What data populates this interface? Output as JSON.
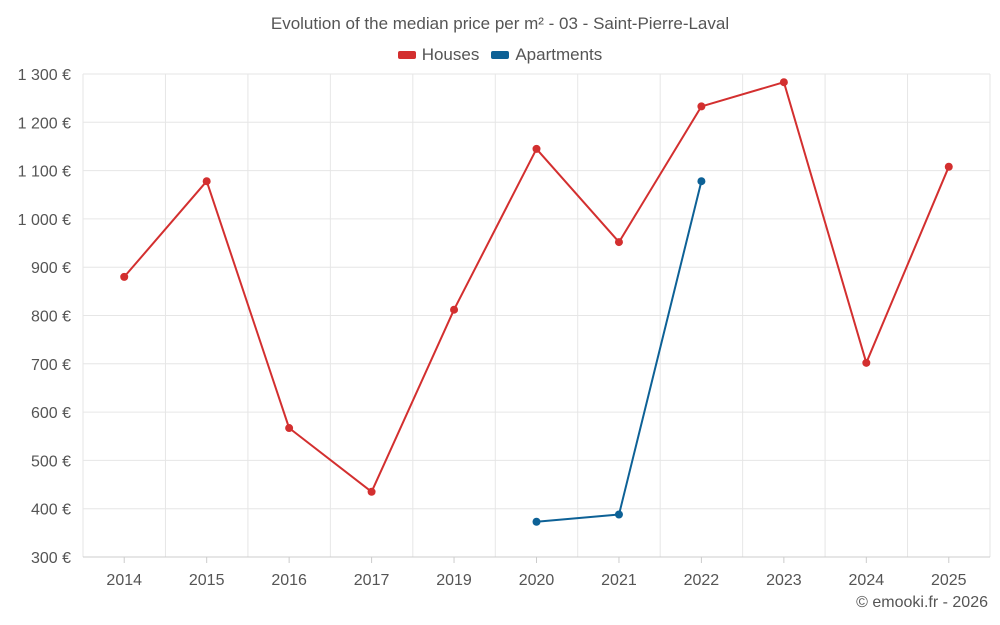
{
  "chart_data": {
    "type": "line",
    "title": "Evolution of the median price per m² - 03 - Saint-Pierre-Laval",
    "categories": [
      "2014",
      "2015",
      "2016",
      "2017",
      "2019",
      "2020",
      "2021",
      "2022",
      "2023",
      "2024",
      "2025"
    ],
    "series": [
      {
        "name": "Houses",
        "color": "#d32f2f",
        "values": [
          880,
          1078,
          567,
          435,
          812,
          1145,
          952,
          1233,
          1283,
          702,
          1108
        ]
      },
      {
        "name": "Apartments",
        "color": "#0d6196",
        "values": [
          null,
          null,
          null,
          null,
          null,
          373,
          388,
          1078,
          null,
          null,
          null
        ]
      }
    ],
    "ylim": [
      300,
      1300
    ],
    "yticks": [
      300,
      400,
      500,
      600,
      700,
      800,
      900,
      1000,
      1100,
      1200,
      1300
    ],
    "ytick_labels": [
      "300 €",
      "400 €",
      "500 €",
      "600 €",
      "700 €",
      "800 €",
      "900 €",
      "1 000 €",
      "1 100 €",
      "1 200 €",
      "1 300 €"
    ],
    "legend": "top-center",
    "grid": true
  },
  "credit": "© emooki.fr - 2026"
}
